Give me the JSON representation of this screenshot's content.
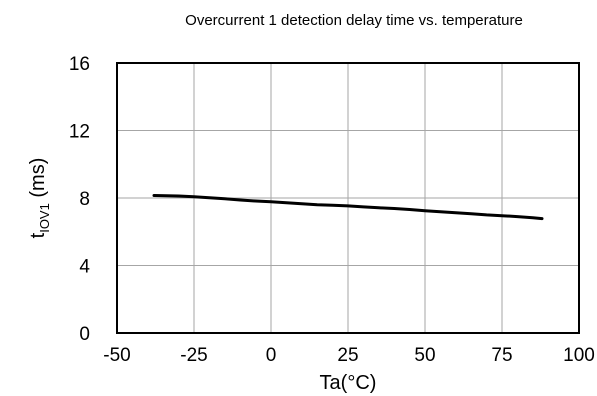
{
  "chart_data": {
    "type": "line",
    "title": "Overcurrent 1 detection delay time vs. temperature",
    "xlabel": "Ta(°C)",
    "ylabel": {
      "main": "t",
      "subscript": "IOV1",
      "unit": " (ms)"
    },
    "xlim": [
      -50,
      100
    ],
    "ylim": [
      0,
      16
    ],
    "xticks": [
      "-50",
      "-25",
      "0",
      "25",
      "50",
      "75",
      "100"
    ],
    "yticks": [
      "0",
      "4",
      "8",
      "12",
      "16"
    ],
    "grid": true,
    "series": [
      {
        "color": "#000000",
        "x": [
          -38,
          -30,
          -25,
          -20,
          -15,
          -10,
          -5,
          0,
          5,
          10,
          15,
          20,
          25,
          30,
          35,
          40,
          45,
          50,
          55,
          60,
          65,
          70,
          75,
          80,
          85,
          88
        ],
        "y": [
          8.15,
          8.12,
          8.08,
          8.02,
          7.95,
          7.88,
          7.82,
          7.78,
          7.72,
          7.66,
          7.6,
          7.57,
          7.53,
          7.47,
          7.42,
          7.38,
          7.32,
          7.25,
          7.18,
          7.12,
          7.07,
          7.0,
          6.95,
          6.9,
          6.83,
          6.78
        ]
      }
    ]
  }
}
